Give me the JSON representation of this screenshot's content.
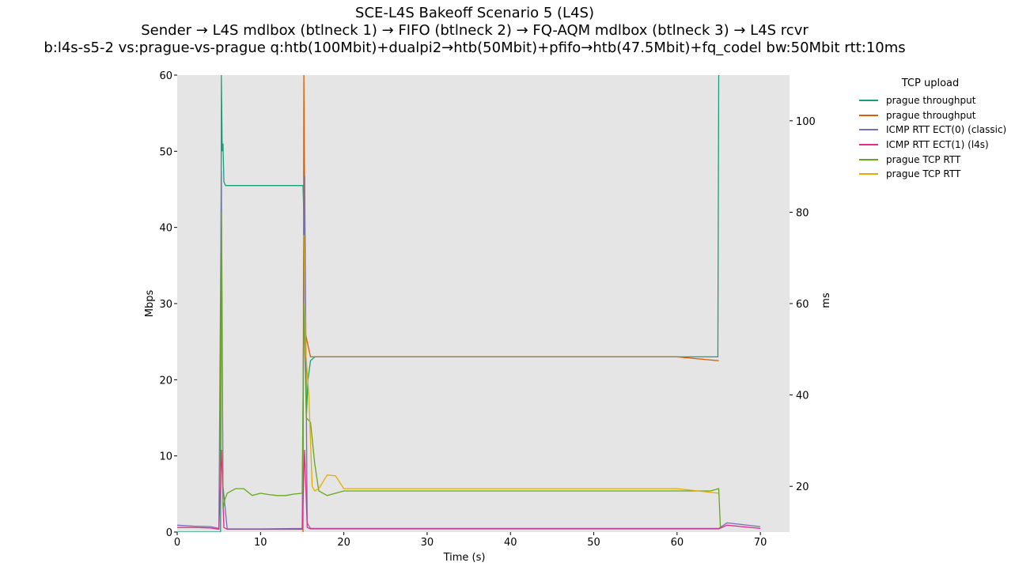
{
  "title_lines": [
    "SCE-L4S Bakeoff Scenario 5 (L4S)",
    "Sender → L4S mdlbox (btlneck 1) → FIFO (btlneck 2) → FQ-AQM mdlbox (btlneck 3) → L4S rcvr",
    "b:l4s-s5-2 vs:prague-vs-prague q:htb(100Mbit)+dualpi2→htb(50Mbit)+pfifo→htb(47.5Mbit)+fq_codel bw:50Mbit rtt:10ms"
  ],
  "legend_title": "TCP upload",
  "chart_data": {
    "type": "line",
    "title": "SCE-L4S Bakeoff Scenario 5 (L4S)",
    "xlabel": "Time (s)",
    "ylabel": "Mbps",
    "y2label": "ms",
    "xlim": [
      0,
      73.5
    ],
    "ylim": [
      0,
      60
    ],
    "y2lim": [
      10,
      110
    ],
    "xticks": [
      0,
      10,
      20,
      30,
      40,
      50,
      60,
      70
    ],
    "yticks": [
      0,
      10,
      20,
      30,
      40,
      50,
      60
    ],
    "y2ticks": [
      20,
      40,
      60,
      80,
      100
    ],
    "grid": false,
    "background": "#e5e5e5",
    "legend_position": "outside-right",
    "series": [
      {
        "name": "prague throughput",
        "axis": "left",
        "color": "#1b9e77",
        "x": [
          0,
          5.2,
          5.3,
          5.4,
          5.5,
          5.6,
          5.8,
          6,
          7,
          8,
          10,
          12,
          14,
          15.1,
          15.3,
          15.5,
          15.7,
          16,
          16.5,
          17,
          20,
          30,
          40,
          50,
          60,
          64.9,
          65.0,
          65.1
        ],
        "y": [
          0,
          0,
          60,
          50,
          51,
          46,
          45.5,
          45.5,
          45.5,
          45.5,
          45.5,
          45.5,
          45.5,
          45.5,
          38,
          15,
          20,
          22.5,
          23,
          23,
          23,
          23,
          23,
          23,
          23,
          23,
          60,
          60
        ]
      },
      {
        "name": "prague throughput",
        "axis": "left",
        "color": "#d95f02",
        "x": [
          15.1,
          15.2,
          15.4,
          15.6,
          15.8,
          16,
          16.5,
          17,
          20,
          30,
          40,
          50,
          60,
          65
        ],
        "y": [
          0,
          60,
          26,
          25,
          24,
          23,
          23,
          23,
          23,
          23,
          23,
          23,
          23,
          22.5
        ]
      },
      {
        "name": "ICMP RTT ECT(0) (classic)",
        "axis": "right",
        "color": "#7570b3",
        "x": [
          0,
          2,
          4,
          5.0,
          5.3,
          5.5,
          6,
          10,
          15,
          15.3,
          15.6,
          16,
          20,
          30,
          40,
          50,
          60,
          65,
          66,
          70
        ],
        "y": [
          11.5,
          11.3,
          11.2,
          10.8,
          89,
          20,
          10.7,
          10.7,
          10.8,
          88,
          12,
          10.8,
          10.8,
          10.8,
          10.8,
          10.8,
          10.8,
          10.8,
          12,
          11.2
        ]
      },
      {
        "name": "ICMP RTT ECT(1) (l4s)",
        "axis": "right",
        "color": "#e7298a",
        "x": [
          0,
          2,
          4,
          5.0,
          5.3,
          5.6,
          6,
          10,
          15,
          15.3,
          15.6,
          16,
          20,
          30,
          40,
          50,
          60,
          65,
          66,
          70
        ],
        "y": [
          11,
          11,
          10.9,
          10.6,
          28,
          11,
          10.6,
          10.6,
          10.6,
          28,
          11,
          10.7,
          10.7,
          10.7,
          10.7,
          10.7,
          10.7,
          10.7,
          11.5,
          10.8
        ]
      },
      {
        "name": "prague TCP RTT",
        "axis": "right",
        "color": "#66a61e",
        "x": [
          5.1,
          5.3,
          5.5,
          5.7,
          6,
          7,
          8,
          9,
          10,
          11,
          12,
          13,
          14,
          15,
          15.2,
          15.5,
          16,
          16.5,
          17,
          18,
          20,
          25,
          30,
          35,
          40,
          45,
          50,
          55,
          60,
          64,
          65,
          65.2
        ],
        "y": [
          20,
          80,
          15,
          17,
          18.5,
          19.5,
          19.5,
          18,
          18.5,
          18.2,
          18,
          18,
          18.3,
          18.5,
          60,
          35,
          34,
          25,
          19,
          18,
          19,
          19,
          19,
          19,
          19,
          19,
          19,
          19,
          19,
          19,
          19.5,
          11
        ]
      },
      {
        "name": "prague TCP RTT",
        "axis": "right",
        "color": "#e6ab02",
        "x": [
          15.2,
          15.4,
          15.8,
          16.2,
          16.5,
          17,
          18,
          19,
          20,
          25,
          30,
          35,
          40,
          45,
          50,
          55,
          60,
          65
        ],
        "y": [
          75,
          50,
          40,
          20,
          19,
          19.5,
          22.5,
          22.3,
          19.5,
          19.5,
          19.5,
          19.5,
          19.5,
          19.5,
          19.5,
          19.5,
          19.5,
          18.5
        ]
      }
    ]
  }
}
